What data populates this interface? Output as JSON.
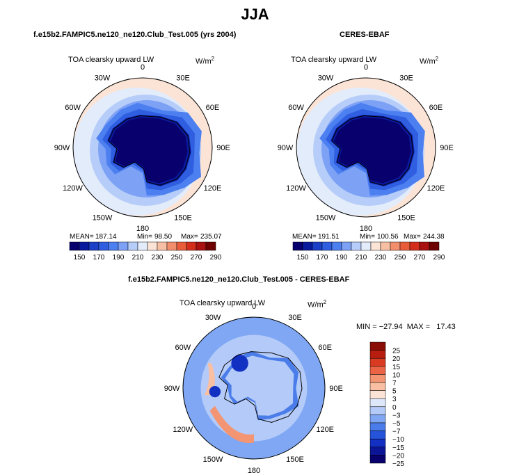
{
  "title": "JJA",
  "colors": {
    "lw_scale": [
      "#08006d",
      "#0a1a9c",
      "#1b3fc7",
      "#2f5ee0",
      "#4c7ff0",
      "#7da1f5",
      "#b7cdf9",
      "#e3ecfb",
      "#fbe4d6",
      "#f7c0a5",
      "#f28e6c",
      "#e95c3a",
      "#d32d1c",
      "#a8110f",
      "#6e0000"
    ],
    "diff_scale": [
      "#08006d",
      "#0b1596",
      "#1230c2",
      "#2553da",
      "#4a7de9",
      "#7fa7f3",
      "#b4caf8",
      "#dfe8fb",
      "#fbe4d6",
      "#f8bfa2",
      "#f39572",
      "#ea6445",
      "#d83b22",
      "#b81e10",
      "#8a0c06"
    ]
  },
  "chart_data": [
    {
      "type": "heatmap",
      "projection": "south-polar-stereographic",
      "title": "f.e15b2.FAMPIC5.ne120_ne120.Club_Test.005 (yrs 2004)",
      "variable": "TOA clearsky upward LW",
      "units": "W/m",
      "units_exp": "2",
      "lon_labels": [
        "0",
        "30E",
        "60E",
        "90E",
        "120E",
        "150E",
        "180",
        "150W",
        "120W",
        "90W",
        "60W",
        "30W"
      ],
      "stats": {
        "mean_label": "MEAN=",
        "mean": "187.14",
        "min_label": "Min=",
        "min": "98.50",
        "max_label": "Max=",
        "max": "235.07"
      },
      "colorbar_labels": [
        "150",
        "170",
        "190",
        "210",
        "230",
        "250",
        "270",
        "290"
      ]
    },
    {
      "type": "heatmap",
      "projection": "south-polar-stereographic",
      "title": "CERES-EBAF",
      "variable": "TOA clearsky upward LW",
      "units": "W/m",
      "units_exp": "2",
      "lon_labels": [
        "0",
        "30E",
        "60E",
        "90E",
        "120E",
        "150E",
        "180",
        "150W",
        "120W",
        "90W",
        "60W",
        "30W"
      ],
      "stats": {
        "mean_label": "MEAN=",
        "mean": "191.51",
        "min_label": "Min=",
        "min": "100.56",
        "max_label": "Max=",
        "max": "244.38"
      },
      "colorbar_labels": [
        "150",
        "170",
        "190",
        "210",
        "230",
        "250",
        "270",
        "290"
      ]
    },
    {
      "type": "heatmap",
      "projection": "south-polar-stereographic",
      "title": "f.e15b2.FAMPIC5.ne120_ne120.Club_Test.005 - CERES-EBAF",
      "variable": "TOA clearsky upward LW",
      "units": "W/m",
      "units_exp": "2",
      "lon_labels": [
        "0",
        "30E",
        "60E",
        "90E",
        "120E",
        "150E",
        "180",
        "150W",
        "120W",
        "90W",
        "60W",
        "30W"
      ],
      "stats_text": "MIN = −27.94  MAX =   17.43",
      "colorbar_labels": [
        "25",
        "20",
        "15",
        "10",
        "7",
        "5",
        "3",
        "0",
        "−3",
        "−5",
        "−7",
        "−10",
        "−15",
        "−20",
        "−25"
      ]
    }
  ]
}
